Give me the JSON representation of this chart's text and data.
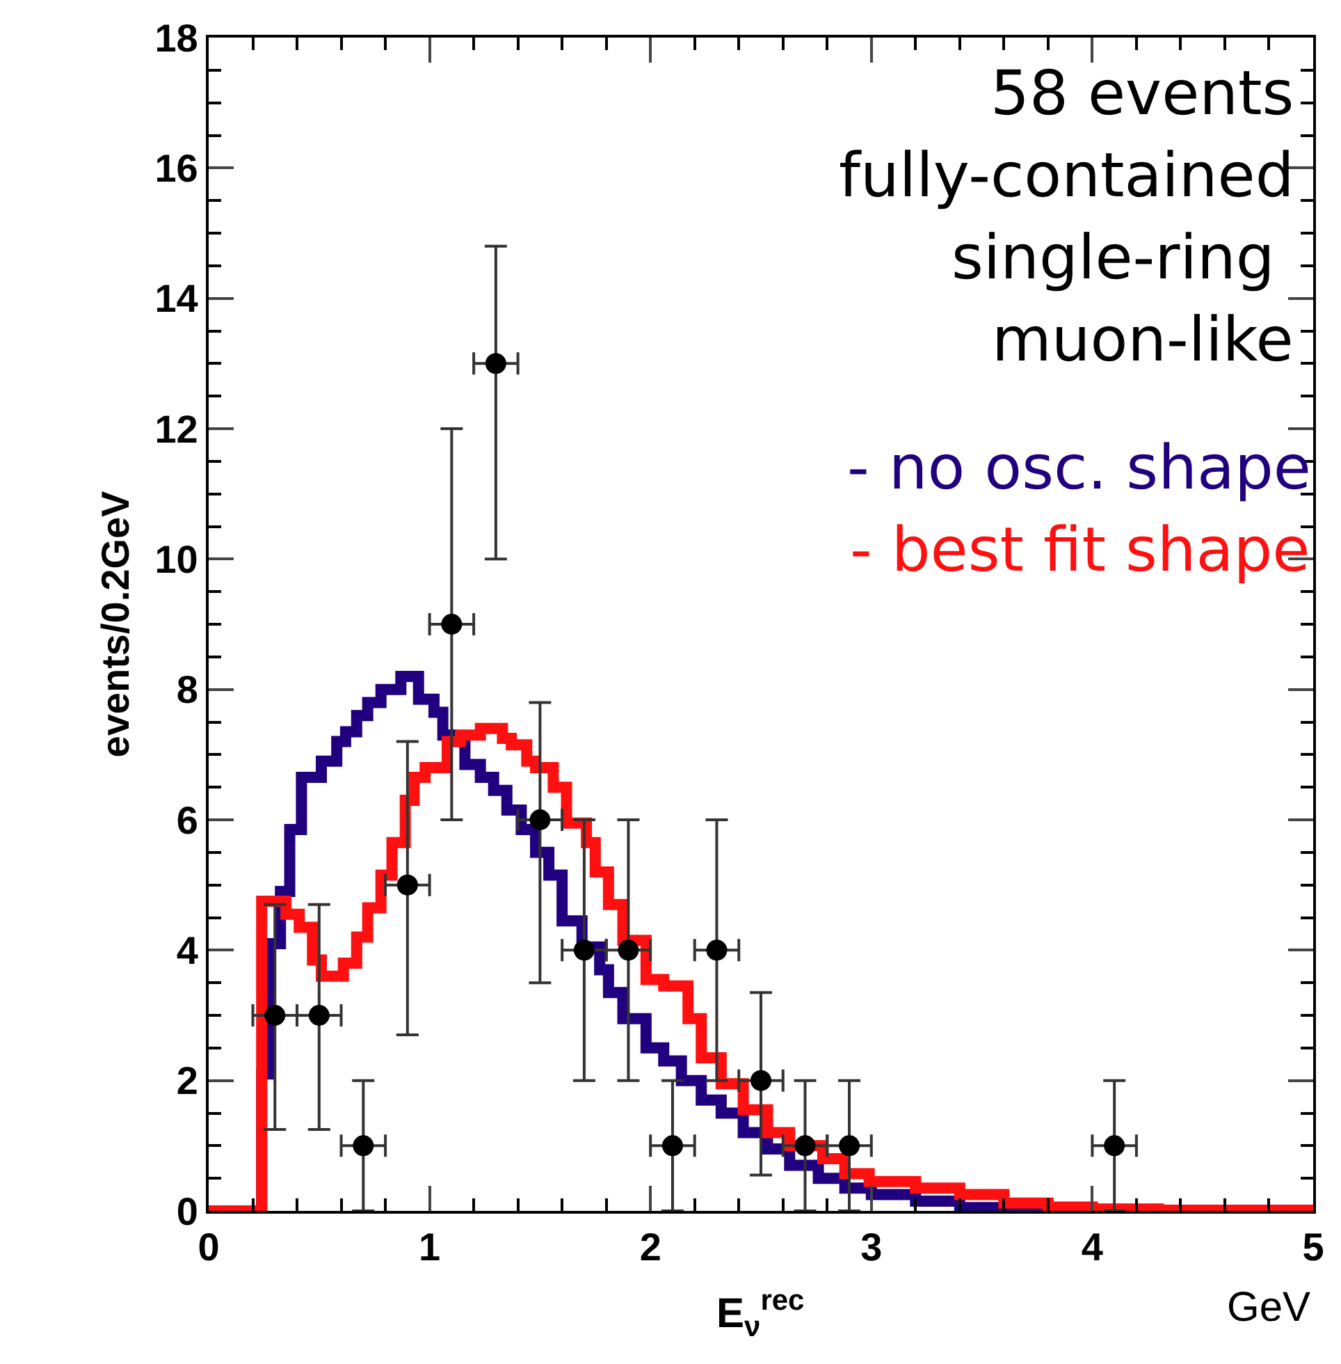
{
  "chart_data": {
    "type": "step",
    "xlabel": "E$_{ν}$$^{rec}$",
    "ylabel": "events/0.2GeV",
    "xlim": [
      0,
      5
    ],
    "xticks": [
      0,
      1,
      2,
      3,
      4,
      5
    ],
    "ylim": [
      0,
      18
    ],
    "yticks": [
      0,
      2,
      4,
      6,
      8,
      10,
      12,
      14,
      16,
      18
    ],
    "line_style": "solid",
    "annotations": [
      "58 events",
      "fully-contained",
      "single-ring ",
      "muon-like",
      "GeV"
    ],
    "series": [
      {
        "name": "- no osc. shape",
        "color": "#20007f",
        "x": [
          0,
          0.24,
          0.28,
          0.325,
          0.367,
          0.42,
          0.51,
          0.58,
          0.62,
          0.67,
          0.72,
          0.78,
          0.87,
          0.95,
          1.02,
          1.06,
          1.1,
          1.16,
          1.23,
          1.29,
          1.35,
          1.415,
          1.48,
          1.54,
          1.6,
          1.69,
          1.77,
          1.81,
          1.875,
          1.98,
          2.06,
          2.14,
          2.23,
          2.32,
          2.42,
          2.53,
          2.63,
          2.76,
          2.88,
          3.0,
          3.2,
          3.4,
          3.6,
          5.0
        ],
        "values": [
          0,
          2.1,
          4.1,
          4.9,
          5.85,
          6.65,
          6.9,
          7.2,
          7.35,
          7.6,
          7.8,
          8.0,
          8.2,
          7.85,
          7.65,
          7.3,
          7.2,
          6.85,
          6.65,
          6.45,
          6.15,
          5.85,
          5.5,
          5.15,
          4.45,
          4.05,
          3.7,
          3.35,
          2.95,
          2.5,
          2.3,
          2.0,
          1.7,
          1.5,
          1.2,
          0.95,
          0.7,
          0.5,
          0.35,
          0.25,
          0.15,
          0.05,
          0,
          0
        ]
      },
      {
        "name": "- best fit shape",
        "color": "#ff1010",
        "x": [
          0,
          0.24,
          0.35,
          0.41,
          0.47,
          0.51,
          0.61,
          0.67,
          0.72,
          0.78,
          0.83,
          0.89,
          0.93,
          0.98,
          1.08,
          1.14,
          1.23,
          1.33,
          1.37,
          1.44,
          1.48,
          1.56,
          1.62,
          1.71,
          1.75,
          1.81,
          1.875,
          1.98,
          2.06,
          2.17,
          2.23,
          2.32,
          2.42,
          2.53,
          2.63,
          2.78,
          2.88,
          2.99,
          3.2,
          3.4,
          3.6,
          3.8,
          4.0,
          4.3,
          5.0
        ],
        "values": [
          0,
          4.75,
          4.55,
          4.35,
          3.85,
          3.6,
          3.8,
          4.2,
          4.65,
          5.15,
          5.65,
          6.3,
          6.65,
          6.8,
          7.2,
          7.3,
          7.4,
          7.25,
          7.15,
          6.9,
          6.8,
          6.5,
          5.95,
          5.65,
          5.2,
          4.7,
          4.15,
          3.55,
          3.45,
          2.95,
          2.35,
          1.95,
          1.55,
          1.2,
          1.0,
          0.8,
          0.57,
          0.45,
          0.35,
          0.25,
          0.12,
          0.06,
          0.03,
          0.01,
          0
        ]
      },
      {
        "color": "#000000",
        "type": "scatter",
        "marker": "circle",
        "x": [
          0.3,
          0.5,
          0.7,
          0.9,
          1.1,
          1.3,
          1.5,
          1.7,
          1.9,
          2.1,
          2.3,
          2.5,
          2.7,
          2.9,
          4.1
        ],
        "values": [
          3,
          3,
          1,
          5,
          9,
          13,
          6,
          4,
          4,
          1,
          4,
          2,
          1,
          1,
          1
        ],
        "errors": [
          [
            1.25,
            4.7
          ],
          [
            1.25,
            4.7
          ],
          [
            0,
            2
          ],
          [
            2.7,
            7.2
          ],
          [
            6,
            12
          ],
          [
            10,
            14.8
          ],
          [
            3.5,
            7.8
          ],
          [
            2,
            6
          ],
          [
            2,
            6
          ],
          [
            0,
            2
          ],
          [
            2,
            6
          ],
          [
            0.55,
            3.35
          ],
          [
            0,
            2
          ],
          [
            0,
            2
          ],
          [
            0,
            2
          ]
        ],
        "xerrors": [
          0.1,
          0.1,
          0.1,
          0.1,
          0.1,
          0.1,
          0.1,
          0.1,
          0.1,
          0.1,
          0.1,
          0.1,
          0.1,
          0.1,
          0.1
        ]
      }
    ]
  }
}
